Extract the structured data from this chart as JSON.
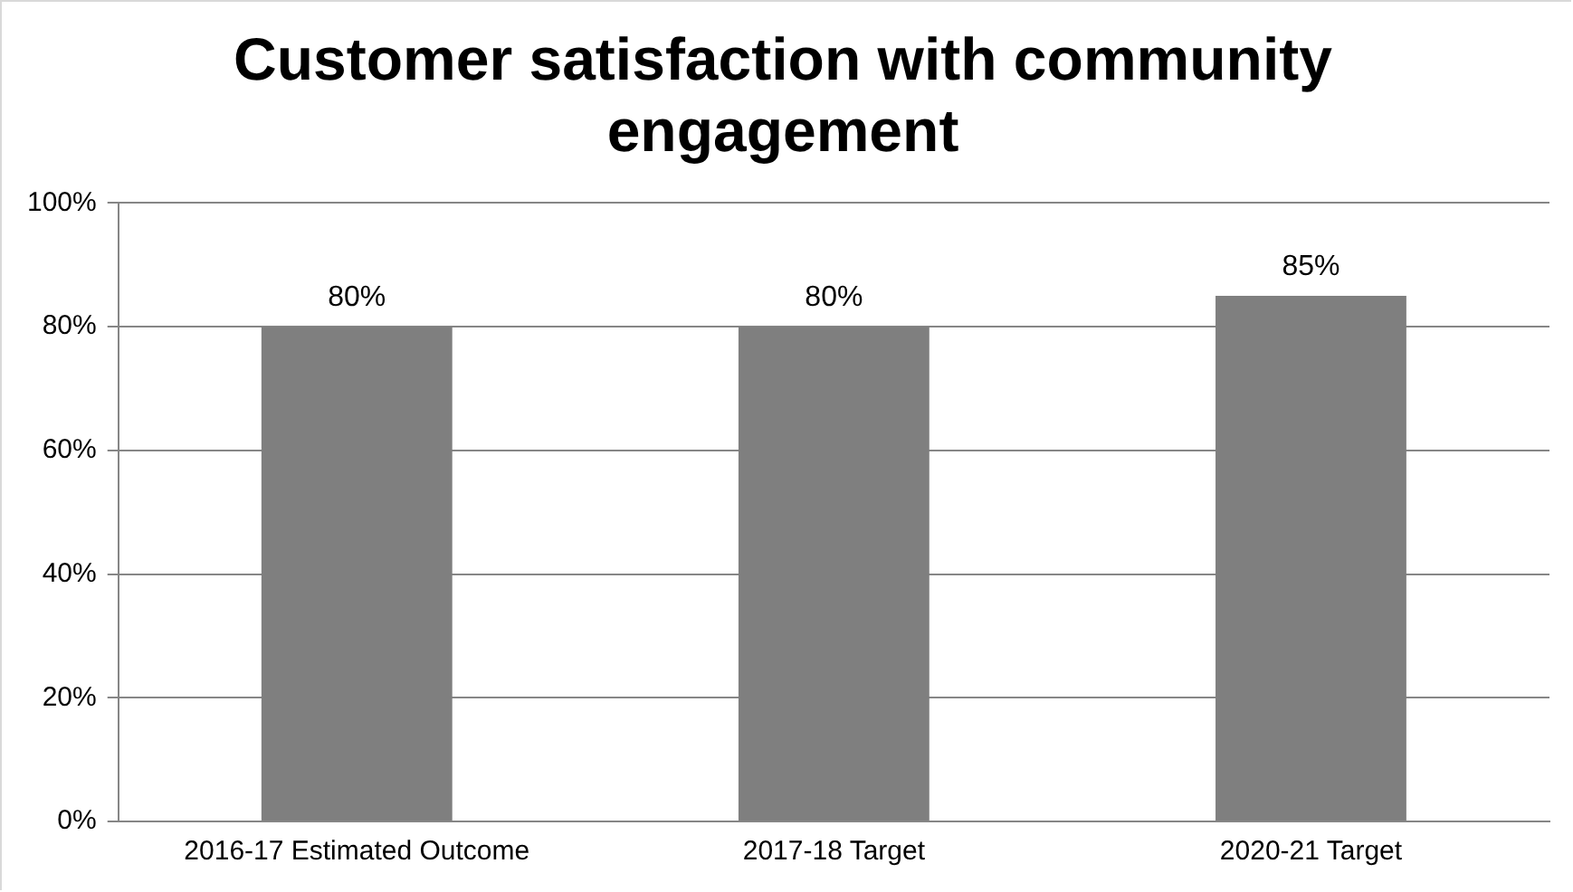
{
  "chart_data": {
    "type": "bar",
    "title": "Customer satisfaction with community engagement",
    "categories": [
      "2016-17 Estimated Outcome",
      "2017-18 Target",
      "2020-21 Target"
    ],
    "values": [
      80,
      80,
      85
    ],
    "color": "#7f7f7f",
    "value_labels": [
      "80%",
      "80%",
      "85%"
    ],
    "ylim": [
      0,
      100
    ],
    "yticks": [
      {
        "value": 0,
        "label": "0%"
      },
      {
        "value": 20,
        "label": "20%"
      },
      {
        "value": 40,
        "label": "40%"
      },
      {
        "value": 60,
        "label": "60%"
      },
      {
        "value": 80,
        "label": "80%"
      },
      {
        "value": 100,
        "label": "100%"
      }
    ],
    "grid": "y",
    "legend": false
  }
}
